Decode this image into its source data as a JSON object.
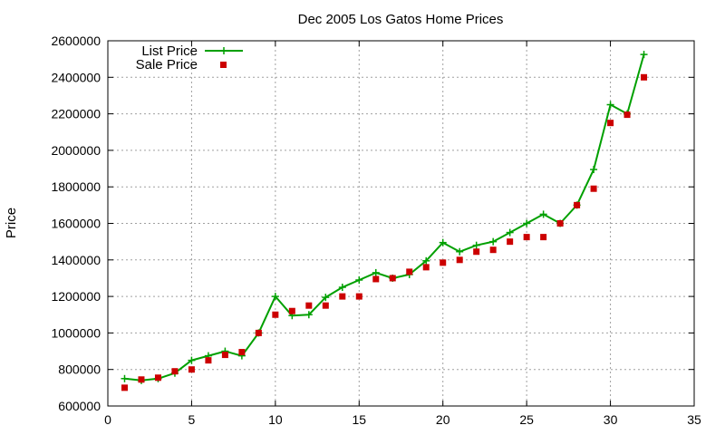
{
  "chart_data": {
    "type": "line",
    "title": "Dec 2005 Los Gatos Home Prices",
    "xlabel": "",
    "ylabel": "Price",
    "xlim": [
      0,
      35
    ],
    "ylim": [
      600000,
      2600000
    ],
    "xticks": [
      0,
      5,
      10,
      15,
      20,
      25,
      30,
      35
    ],
    "yticks": [
      600000,
      800000,
      1000000,
      1200000,
      1400000,
      1600000,
      1800000,
      2000000,
      2200000,
      2400000,
      2600000
    ],
    "grid": true,
    "legend_position": "top-left",
    "colors": {
      "list": "#00a000",
      "sale": "#cc0000"
    },
    "series": [
      {
        "name": "List Price",
        "style": "line-with-plus-markers",
        "x": [
          1,
          2,
          3,
          4,
          5,
          6,
          7,
          8,
          9,
          10,
          11,
          12,
          13,
          14,
          15,
          16,
          17,
          18,
          19,
          20,
          21,
          22,
          23,
          24,
          25,
          26,
          27,
          28,
          29,
          30,
          31,
          32
        ],
        "values": [
          750000,
          740000,
          750000,
          780000,
          850000,
          875000,
          900000,
          875000,
          1000000,
          1200000,
          1095000,
          1100000,
          1195000,
          1250000,
          1290000,
          1330000,
          1300000,
          1320000,
          1395000,
          1495000,
          1445000,
          1480000,
          1500000,
          1550000,
          1600000,
          1650000,
          1600000,
          1700000,
          1895000,
          2250000,
          2200000,
          2525000
        ]
      },
      {
        "name": "Sale Price",
        "style": "square-markers",
        "x": [
          1,
          2,
          3,
          4,
          5,
          6,
          7,
          8,
          9,
          10,
          11,
          12,
          13,
          14,
          15,
          16,
          17,
          18,
          19,
          20,
          21,
          22,
          23,
          24,
          25,
          26,
          27,
          28,
          29,
          30,
          31,
          32
        ],
        "values": [
          700000,
          745000,
          755000,
          790000,
          800000,
          850000,
          880000,
          895000,
          1000000,
          1100000,
          1120000,
          1150000,
          1150000,
          1200000,
          1200000,
          1295000,
          1300000,
          1335000,
          1360000,
          1385000,
          1400000,
          1445000,
          1455000,
          1500000,
          1525000,
          1525000,
          1600000,
          1700000,
          1790000,
          2150000,
          2195000,
          2400000
        ]
      }
    ]
  }
}
